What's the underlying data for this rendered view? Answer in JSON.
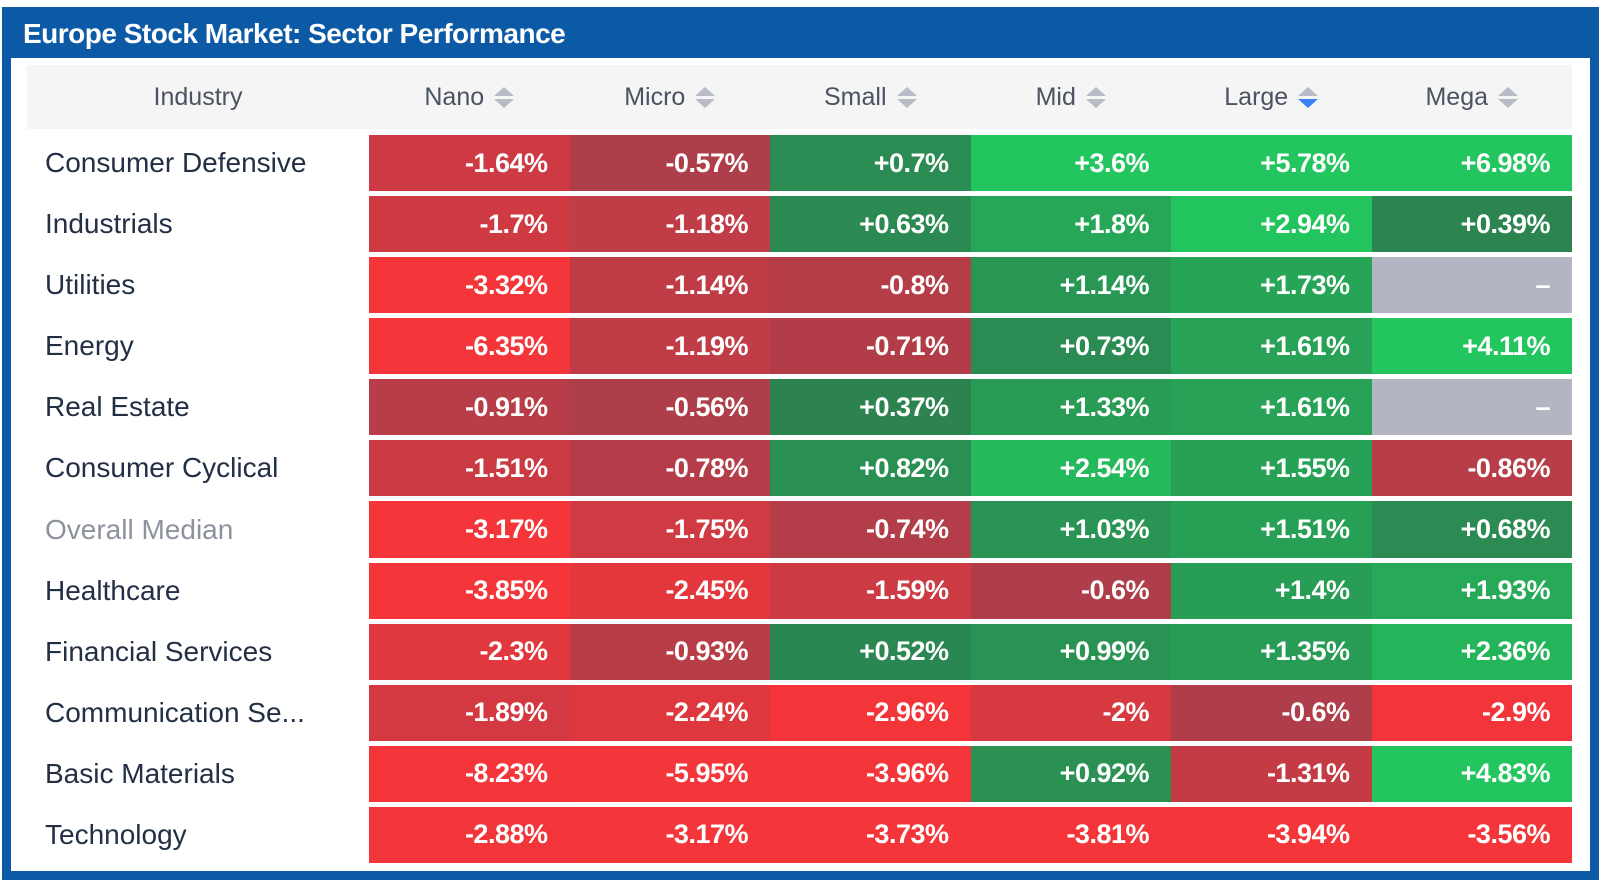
{
  "title": "Europe Stock Market: Sector Performance",
  "colors": {
    "brand_blue": "#0c59a5",
    "accent_blue": "#3b82f6",
    "positive_dark": "#2d7a4e",
    "positive_bright": "#22c55e",
    "negative_dark": "#9e404e",
    "negative_bright": "#f43539",
    "empty_cell": "#b3b6c2",
    "header_bg": "#f5f5f6"
  },
  "table": {
    "industry_header": "Industry",
    "columns": [
      {
        "label": "Nano",
        "sort": "none"
      },
      {
        "label": "Micro",
        "sort": "none"
      },
      {
        "label": "Small",
        "sort": "none"
      },
      {
        "label": "Mid",
        "sort": "none"
      },
      {
        "label": "Large",
        "sort": "desc"
      },
      {
        "label": "Mega",
        "sort": "none"
      }
    ],
    "empty_value": "–",
    "rows": [
      {
        "industry": "Consumer Defensive",
        "muted": false,
        "values": [
          "-1.64%",
          "-0.57%",
          "+0.7%",
          "+3.6%",
          "+5.78%",
          "+6.98%"
        ]
      },
      {
        "industry": "Industrials",
        "muted": false,
        "values": [
          "-1.7%",
          "-1.18%",
          "+0.63%",
          "+1.8%",
          "+2.94%",
          "+0.39%"
        ]
      },
      {
        "industry": "Utilities",
        "muted": false,
        "values": [
          "-3.32%",
          "-1.14%",
          "-0.8%",
          "+1.14%",
          "+1.73%",
          "–"
        ]
      },
      {
        "industry": "Energy",
        "muted": false,
        "values": [
          "-6.35%",
          "-1.19%",
          "-0.71%",
          "+0.73%",
          "+1.61%",
          "+4.11%"
        ]
      },
      {
        "industry": "Real Estate",
        "muted": false,
        "values": [
          "-0.91%",
          "-0.56%",
          "+0.37%",
          "+1.33%",
          "+1.61%",
          "–"
        ]
      },
      {
        "industry": "Consumer Cyclical",
        "muted": false,
        "values": [
          "-1.51%",
          "-0.78%",
          "+0.82%",
          "+2.54%",
          "+1.55%",
          "-0.86%"
        ]
      },
      {
        "industry": "Overall Median",
        "muted": true,
        "values": [
          "-3.17%",
          "-1.75%",
          "-0.74%",
          "+1.03%",
          "+1.51%",
          "+0.68%"
        ]
      },
      {
        "industry": "Healthcare",
        "muted": false,
        "values": [
          "-3.85%",
          "-2.45%",
          "-1.59%",
          "-0.6%",
          "+1.4%",
          "+1.93%"
        ]
      },
      {
        "industry": "Financial Services",
        "muted": false,
        "values": [
          "-2.3%",
          "-0.93%",
          "+0.52%",
          "+0.99%",
          "+1.35%",
          "+2.36%"
        ]
      },
      {
        "industry": "Communication Se...",
        "muted": false,
        "values": [
          "-1.89%",
          "-2.24%",
          "-2.96%",
          "-2%",
          "-0.6%",
          "-2.9%"
        ]
      },
      {
        "industry": "Basic Materials",
        "muted": false,
        "values": [
          "-8.23%",
          "-5.95%",
          "-3.96%",
          "+0.92%",
          "-1.31%",
          "+4.83%"
        ]
      },
      {
        "industry": "Technology",
        "muted": false,
        "values": [
          "-2.88%",
          "-3.17%",
          "-3.73%",
          "-3.81%",
          "-3.94%",
          "-3.56%"
        ]
      }
    ]
  },
  "chart_data": {
    "type": "heatmap",
    "title": "Europe Stock Market: Sector Performance",
    "x_categories": [
      "Nano",
      "Micro",
      "Small",
      "Mid",
      "Large",
      "Mega"
    ],
    "y_categories": [
      "Consumer Defensive",
      "Industrials",
      "Utilities",
      "Energy",
      "Real Estate",
      "Consumer Cyclical",
      "Overall Median",
      "Healthcare",
      "Financial Services",
      "Communication Se...",
      "Basic Materials",
      "Technology"
    ],
    "values_pct": [
      [
        -1.64,
        -0.57,
        0.7,
        3.6,
        5.78,
        6.98
      ],
      [
        -1.7,
        -1.18,
        0.63,
        1.8,
        2.94,
        0.39
      ],
      [
        -3.32,
        -1.14,
        -0.8,
        1.14,
        1.73,
        null
      ],
      [
        -6.35,
        -1.19,
        -0.71,
        0.73,
        1.61,
        4.11
      ],
      [
        -0.91,
        -0.56,
        0.37,
        1.33,
        1.61,
        null
      ],
      [
        -1.51,
        -0.78,
        0.82,
        2.54,
        1.55,
        -0.86
      ],
      [
        -3.17,
        -1.75,
        -0.74,
        1.03,
        1.51,
        0.68
      ],
      [
        -3.85,
        -2.45,
        -1.59,
        -0.6,
        1.4,
        1.93
      ],
      [
        -2.3,
        -0.93,
        0.52,
        0.99,
        1.35,
        2.36
      ],
      [
        -1.89,
        -2.24,
        -2.96,
        -2,
        -0.6,
        -2.9
      ],
      [
        -8.23,
        -5.95,
        -3.96,
        0.92,
        -1.31,
        4.83
      ],
      [
        -2.88,
        -3.17,
        -3.73,
        -3.81,
        -3.94,
        -3.56
      ]
    ],
    "sorted_by": {
      "column": "Large",
      "direction": "desc"
    },
    "color_scale": {
      "negative": "red",
      "positive": "green",
      "saturation_limit_pct": 3,
      "missing": "gray"
    }
  }
}
